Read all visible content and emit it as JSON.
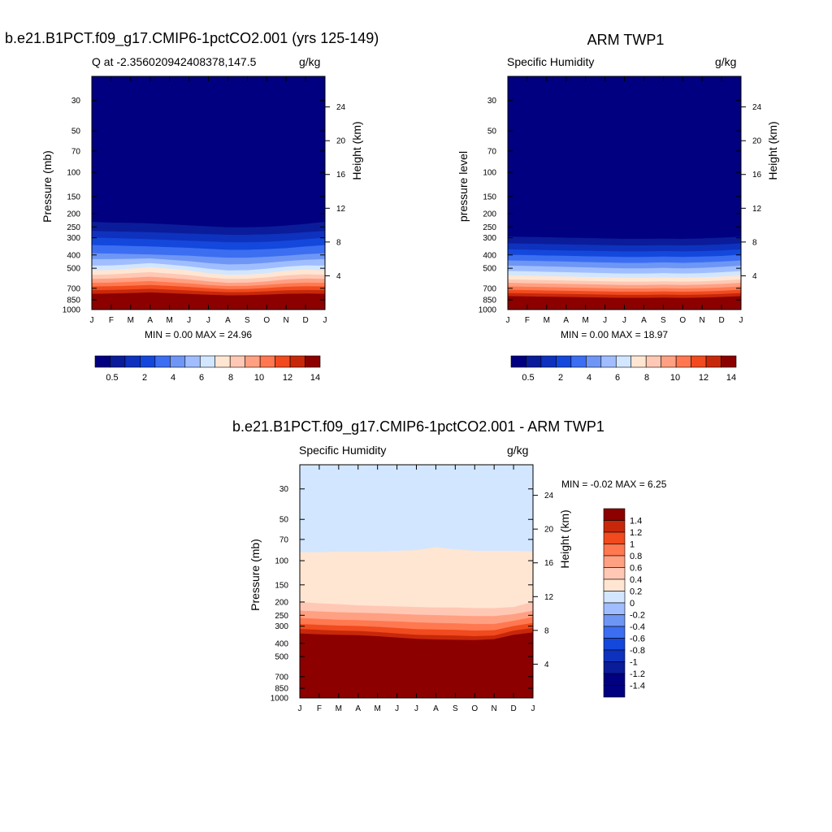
{
  "palette": [
    "#000080",
    "#0a1c9a",
    "#0e32be",
    "#1448dc",
    "#3c6ef2",
    "#6e96f5",
    "#a0beff",
    "#d2e6ff",
    "#ffe6d2",
    "#ffc8b4",
    "#ffa082",
    "#ff7850",
    "#f04a1e",
    "#c8280a",
    "#8c0000"
  ],
  "top_left": {
    "title": "b.e21.B1PCT.f09_g17.CMIP6-1pctCO2.001 (yrs 125-149)",
    "left_label": "Q at -2.356020942408378,147.5",
    "right_label": "g/kg",
    "stats": "MIN =   0.00 MAX =  24.96"
  },
  "top_right": {
    "title": "ARM TWP1",
    "left_label": "Specific Humidity",
    "right_label": "g/kg",
    "stats": "MIN =   0.00 MAX =  18.97"
  },
  "bottom": {
    "title": "b.e21.B1PCT.f09_g17.CMIP6-1pctCO2.001 - ARM TWP1",
    "left_label": "Specific Humidity",
    "right_label": "g/kg",
    "stats": "MIN =  -0.02 MAX =   6.25"
  },
  "chart_data": [
    {
      "type": "heatmap",
      "name": "model",
      "title": "b.e21.B1PCT.f09_g17.CMIP6-1pctCO2.001 (yrs 125-149)",
      "xlabel": "",
      "ylabel": "Pressure (mb)",
      "ylabel_right": "Height (km)",
      "x_ticks": [
        "J",
        "F",
        "M",
        "A",
        "M",
        "J",
        "J",
        "A",
        "S",
        "O",
        "N",
        "D",
        "J"
      ],
      "y_ticks": [
        "30",
        "50",
        "70",
        "100",
        "150",
        "200",
        "250",
        "300",
        "400",
        "500",
        "700",
        "850",
        "1000"
      ],
      "y_right_ticks": [
        "24",
        "20",
        "16",
        "12",
        "8",
        "4"
      ],
      "ylim": [
        1000,
        20
      ],
      "colorbar_labels": [
        "0.5",
        "2",
        "4",
        "6",
        "8",
        "10",
        "12",
        "14"
      ],
      "contour_levels": [
        0.5,
        1,
        2,
        3,
        4,
        5,
        6,
        7,
        8,
        9,
        10,
        11,
        12,
        13,
        14
      ],
      "min": 0.0,
      "max": 24.96,
      "months": [
        0,
        1,
        2,
        3,
        4,
        5,
        6,
        7,
        8,
        9,
        10,
        11,
        12
      ],
      "level_pressures": [
        [
          230,
          233,
          234,
          236,
          240,
          244,
          248,
          252,
          252,
          250,
          245,
          238,
          230
        ],
        [
          268,
          270,
          272,
          274,
          277,
          280,
          283,
          286,
          286,
          284,
          280,
          274,
          268
        ],
        [
          300,
          302,
          305,
          308,
          312,
          316,
          320,
          324,
          324,
          322,
          316,
          308,
          300
        ],
        [
          340,
          342,
          345,
          348,
          352,
          356,
          362,
          368,
          368,
          364,
          358,
          348,
          340
        ],
        [
          390,
          392,
          395,
          398,
          402,
          406,
          414,
          420,
          420,
          414,
          406,
          396,
          390
        ],
        [
          430,
          430,
          428,
          425,
          435,
          445,
          460,
          470,
          468,
          458,
          445,
          435,
          430
        ],
        [
          480,
          478,
          470,
          460,
          472,
          486,
          505,
          520,
          518,
          505,
          488,
          478,
          480
        ],
        [
          520,
          516,
          505,
          492,
          505,
          520,
          545,
          560,
          558,
          545,
          522,
          512,
          520
        ],
        [
          560,
          556,
          545,
          535,
          548,
          562,
          585,
          600,
          598,
          585,
          565,
          555,
          560
        ],
        [
          600,
          596,
          588,
          578,
          590,
          605,
          625,
          640,
          638,
          625,
          605,
          596,
          600
        ],
        [
          640,
          638,
          630,
          622,
          634,
          646,
          664,
          676,
          674,
          662,
          646,
          638,
          640
        ],
        [
          680,
          678,
          672,
          664,
          674,
          686,
          700,
          712,
          710,
          698,
          684,
          678,
          680
        ],
        [
          725,
          722,
          716,
          708,
          718,
          728,
          740,
          750,
          748,
          738,
          726,
          722,
          725
        ],
        [
          770,
          766,
          760,
          752,
          762,
          772,
          782,
          790,
          788,
          780,
          770,
          766,
          770
        ],
        [
          820,
          818,
          812,
          805,
          812,
          820,
          828,
          834,
          832,
          826,
          820,
          816,
          820
        ]
      ]
    },
    {
      "type": "heatmap",
      "name": "obs",
      "title": "ARM TWP1",
      "xlabel": "",
      "ylabel": "pressure level",
      "ylabel_right": "Height (km)",
      "x_ticks": [
        "J",
        "F",
        "M",
        "A",
        "M",
        "J",
        "J",
        "A",
        "S",
        "O",
        "N",
        "D",
        "J"
      ],
      "y_ticks": [
        "30",
        "50",
        "70",
        "100",
        "150",
        "200",
        "250",
        "300",
        "400",
        "500",
        "700",
        "850",
        "1000"
      ],
      "y_right_ticks": [
        "24",
        "20",
        "16",
        "12",
        "8",
        "4"
      ],
      "ylim": [
        1000,
        20
      ],
      "colorbar_labels": [
        "0.5",
        "2",
        "4",
        "6",
        "8",
        "10",
        "12",
        "14"
      ],
      "contour_levels": [
        0.5,
        1,
        2,
        3,
        4,
        5,
        6,
        7,
        8,
        9,
        10,
        11,
        12,
        13,
        14
      ],
      "min": 0.0,
      "max": 18.97,
      "months": [
        0,
        1,
        2,
        3,
        4,
        5,
        6,
        7,
        8,
        9,
        10,
        11,
        12
      ],
      "level_pressures": [
        [
          295,
          296,
          298,
          300,
          302,
          304,
          306,
          306,
          305,
          306,
          304,
          300,
          295
        ],
        [
          330,
          332,
          334,
          336,
          338,
          340,
          342,
          342,
          340,
          342,
          340,
          336,
          330
        ],
        [
          365,
          367,
          370,
          372,
          374,
          376,
          378,
          378,
          376,
          378,
          376,
          372,
          365
        ],
        [
          400,
          402,
          405,
          407,
          410,
          412,
          415,
          415,
          412,
          415,
          412,
          408,
          400
        ],
        [
          440,
          442,
          445,
          448,
          452,
          455,
          458,
          458,
          454,
          458,
          454,
          448,
          440
        ],
        [
          480,
          482,
          486,
          490,
          494,
          498,
          502,
          502,
          498,
          502,
          498,
          490,
          480
        ],
        [
          525,
          527,
          532,
          536,
          540,
          544,
          548,
          548,
          544,
          548,
          544,
          536,
          525
        ],
        [
          565,
          568,
          572,
          576,
          580,
          584,
          588,
          588,
          584,
          588,
          584,
          576,
          565
        ],
        [
          605,
          608,
          612,
          616,
          620,
          624,
          628,
          628,
          624,
          628,
          624,
          616,
          605
        ],
        [
          640,
          644,
          648,
          652,
          656,
          660,
          664,
          664,
          660,
          664,
          660,
          652,
          640
        ],
        [
          680,
          684,
          688,
          692,
          696,
          700,
          704,
          704,
          700,
          704,
          700,
          692,
          680
        ],
        [
          720,
          724,
          728,
          732,
          736,
          740,
          744,
          744,
          740,
          744,
          740,
          732,
          720
        ],
        [
          760,
          764,
          768,
          772,
          776,
          780,
          784,
          784,
          780,
          784,
          780,
          772,
          760
        ],
        [
          800,
          804,
          808,
          812,
          816,
          820,
          824,
          824,
          820,
          824,
          820,
          812,
          800
        ],
        [
          845,
          848,
          852,
          855,
          858,
          861,
          864,
          864,
          861,
          864,
          861,
          855,
          845
        ]
      ]
    },
    {
      "type": "heatmap",
      "name": "diff",
      "title": "b.e21.B1PCT.f09_g17.CMIP6-1pctCO2.001 - ARM TWP1",
      "xlabel": "",
      "ylabel": "Pressure (mb)",
      "ylabel_right": "Height (km)",
      "x_ticks": [
        "J",
        "F",
        "M",
        "A",
        "M",
        "J",
        "J",
        "A",
        "S",
        "O",
        "N",
        "D",
        "J"
      ],
      "y_ticks": [
        "30",
        "50",
        "70",
        "100",
        "150",
        "200",
        "250",
        "300",
        "400",
        "500",
        "700",
        "850",
        "1000"
      ],
      "y_right_ticks": [
        "24",
        "20",
        "16",
        "12",
        "8",
        "4"
      ],
      "ylim": [
        1000,
        20
      ],
      "colorbar_labels": [
        "1.4",
        "1.2",
        "1",
        "0.8",
        "0.6",
        "0.4",
        "0.2",
        "0",
        "-0.2",
        "-0.4",
        "-0.6",
        "-0.8",
        "-1",
        "-1.2",
        "-1.4"
      ],
      "contour_levels": [
        -1.4,
        -1.2,
        -1.0,
        -0.8,
        -0.6,
        -0.4,
        -0.2,
        0,
        0.2,
        0.4,
        0.6,
        0.8,
        1.0,
        1.2,
        1.4
      ],
      "min": -0.02,
      "max": 6.25,
      "months": [
        0,
        1,
        2,
        3,
        4,
        5,
        6,
        7,
        8,
        9,
        10,
        11,
        12
      ],
      "level_pressures": [
        [
          87,
          87,
          86,
          86,
          86,
          85,
          84,
          80,
          83,
          85,
          85,
          85,
          86
        ],
        [
          200,
          205,
          208,
          212,
          214,
          216,
          218,
          220,
          220,
          222,
          222,
          218,
          200
        ],
        [
          232,
          235,
          238,
          240,
          242,
          245,
          248,
          250,
          252,
          254,
          254,
          246,
          232
        ],
        [
          262,
          266,
          270,
          272,
          275,
          278,
          282,
          285,
          287,
          290,
          290,
          275,
          258
        ],
        [
          290,
          294,
          298,
          300,
          304,
          310,
          316,
          318,
          320,
          324,
          322,
          300,
          285
        ],
        [
          315,
          320,
          324,
          326,
          332,
          340,
          348,
          350,
          352,
          356,
          352,
          324,
          310
        ],
        [
          340,
          345,
          348,
          350,
          356,
          364,
          372,
          376,
          378,
          380,
          374,
          348,
          334
        ],
        [
          365,
          368,
          372,
          370,
          376,
          384,
          392,
          396,
          398,
          398,
          392,
          372,
          360
        ]
      ]
    }
  ]
}
